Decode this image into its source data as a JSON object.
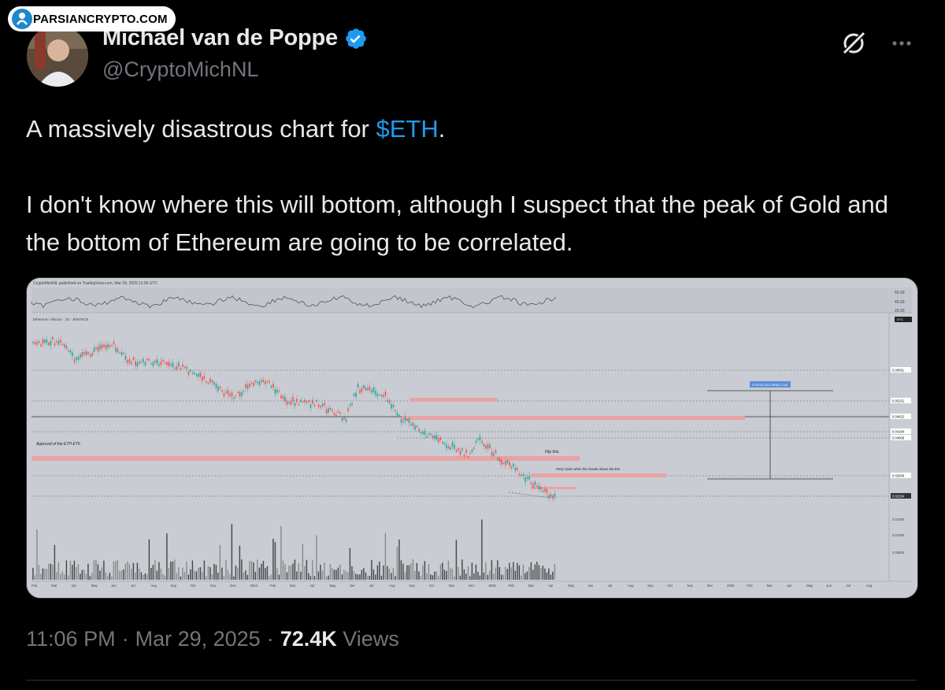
{
  "watermark": {
    "text": "PARSIANCRYPTO.COM"
  },
  "author": {
    "name": "Michael van de Poppe",
    "handle": "@CryptoMichNL",
    "verified": true
  },
  "icons": {
    "verified": "verified-badge-icon",
    "grok": "grok-icon",
    "more": "more-icon"
  },
  "tweet": {
    "line1_prefix": "A massively disastrous chart for ",
    "cashtag": "$ETH",
    "line1_suffix": ".",
    "line2": "I don't know where this will bottom, although I suspect that the peak of Gold and the bottom of Ethereum are going to be correlated."
  },
  "chart": {
    "header": "CryptoMichNL published on TradingView.com, Mar 29, 2025 11:05 UTC",
    "pair_label": "Ethereum / Bitcoin · 1D · BINANCE",
    "annotations": {
      "etf": "Approval of the ETH ETF.",
      "flip": "Flip this.",
      "party": "Party starts when this breaks above the line.",
      "target": "0.02742 (101.06%) 2,742"
    },
    "top_panel_levels": [
      "60.00",
      "40.00",
      "20.00"
    ],
    "price_labels": [
      "0.06061",
      "0.05151",
      "0.04622",
      "0.04184",
      "0.04008",
      "0.02840",
      "0.02254"
    ],
    "volume_labels": [
      "0.01500",
      "0.01000",
      "0.00500"
    ],
    "x_labels": [
      "Feb",
      "Mar",
      "Apr",
      "May",
      "Jun",
      "Jul",
      "Aug",
      "Sep",
      "Oct",
      "Nov",
      "Dec",
      "2024",
      "Feb",
      "Mar",
      "Apr",
      "May",
      "Jun",
      "Jul",
      "Aug",
      "Sep",
      "Oct",
      "Nov",
      "Dec",
      "2025",
      "Feb",
      "Mar",
      "Apr",
      "May",
      "Jun",
      "Jul",
      "Aug",
      "Sep",
      "Oct",
      "Nov",
      "Dec",
      "2026",
      "Feb",
      "Mar",
      "Apr",
      "May",
      "Jun",
      "Jul",
      "Aug"
    ],
    "colors": {
      "up": "#26a69a",
      "down": "#ef5350",
      "zone": "#e8a3a3",
      "background": "#c9ccd3"
    }
  },
  "meta": {
    "time": "11:06 PM",
    "separator": "·",
    "date": "Mar 29, 2025",
    "views_count": "72.4K",
    "views_label": "Views"
  }
}
